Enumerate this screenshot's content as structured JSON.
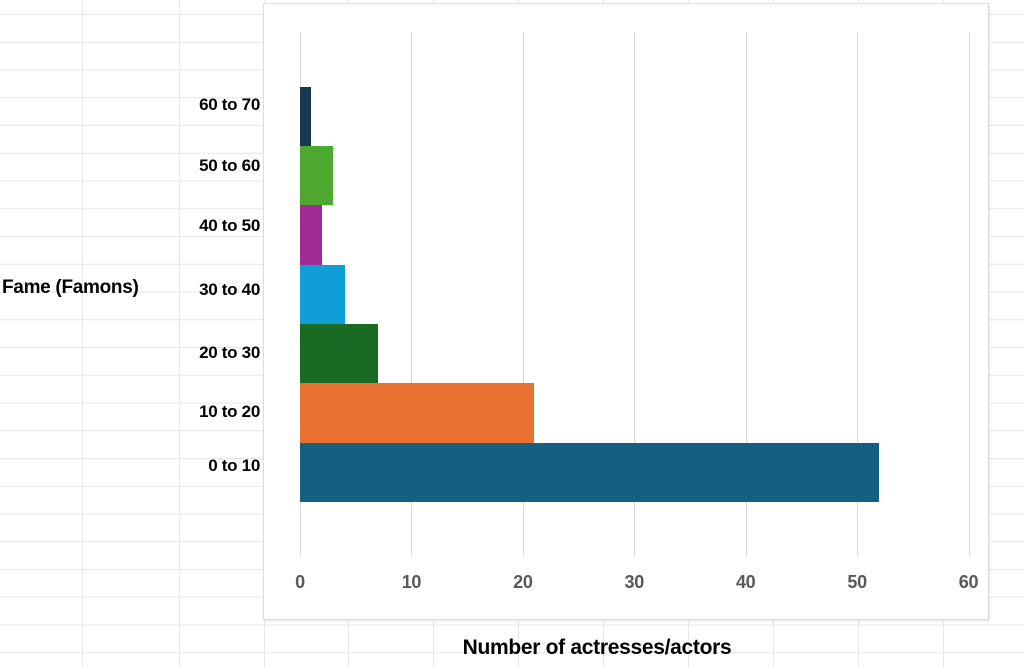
{
  "app": {
    "context": "spreadsheet-with-embedded-chart"
  },
  "colors": {
    "sheet_gridline": "#e7e7e7",
    "plot_gridline": "#d9d9d9",
    "chart_border": "#dcdcdc",
    "tick_text": "#595959",
    "axis_text": "#000000"
  },
  "chart_data": {
    "type": "bar",
    "orientation": "horizontal",
    "title": "",
    "xlabel": "Number of actresses/actors",
    "ylabel": "Fame (Famons)",
    "categories": [
      "60 to 70",
      "50 to 60",
      "40 to 50",
      "30 to 40",
      "20 to 30",
      "10 to 20",
      "0 to 10"
    ],
    "values": [
      1,
      3,
      2,
      4,
      7,
      21,
      52
    ],
    "bar_colors": [
      "#15394F",
      "#4EA72E",
      "#A02B93",
      "#0F9ED5",
      "#196B24",
      "#E97132",
      "#156082"
    ],
    "xlim": [
      0,
      60
    ],
    "xticks": [
      0,
      10,
      20,
      30,
      40,
      50,
      60
    ],
    "grid": true,
    "legend": false,
    "gap_between_bars": 0
  }
}
